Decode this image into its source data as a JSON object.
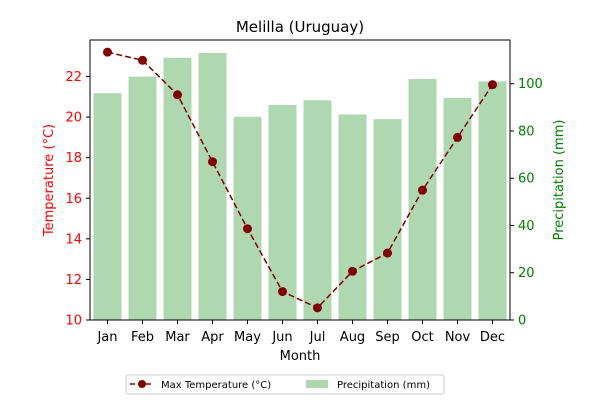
{
  "chart_data": {
    "type": "bar+line",
    "title": "Melilla (Uruguay)",
    "xlabel": "Month",
    "categories": [
      "Jan",
      "Feb",
      "Mar",
      "Apr",
      "May",
      "Jun",
      "Jul",
      "Aug",
      "Sep",
      "Oct",
      "Nov",
      "Dec"
    ],
    "left_axis": {
      "label": "Temperature (°C)",
      "color": "#ff0000",
      "ylim": [
        10,
        23.8
      ],
      "ticks": [
        "10",
        "12",
        "14",
        "16",
        "18",
        "20",
        "22"
      ]
    },
    "right_axis": {
      "label": "Precipitation (mm)",
      "color": "#008000",
      "ylim": [
        0,
        118.5
      ],
      "ticks": [
        "0",
        "20",
        "40",
        "60",
        "80",
        "100"
      ]
    },
    "series": [
      {
        "name": "Max Temperature (°C)",
        "kind": "line",
        "axis": "left",
        "color": "#800000",
        "style": "dashed",
        "marker": "circle",
        "values": [
          23.2,
          22.8,
          21.1,
          17.8,
          14.5,
          11.4,
          10.6,
          12.4,
          13.3,
          16.4,
          19.0,
          21.6
        ]
      },
      {
        "name": "Precipitation (mm)",
        "kind": "bar",
        "axis": "right",
        "color": "#b0d8b0",
        "values": [
          96,
          103,
          111,
          113,
          86,
          91,
          93,
          87,
          85,
          102,
          94,
          101
        ]
      }
    ],
    "legend": {
      "placement": "bottom-center",
      "columns": 2
    }
  }
}
